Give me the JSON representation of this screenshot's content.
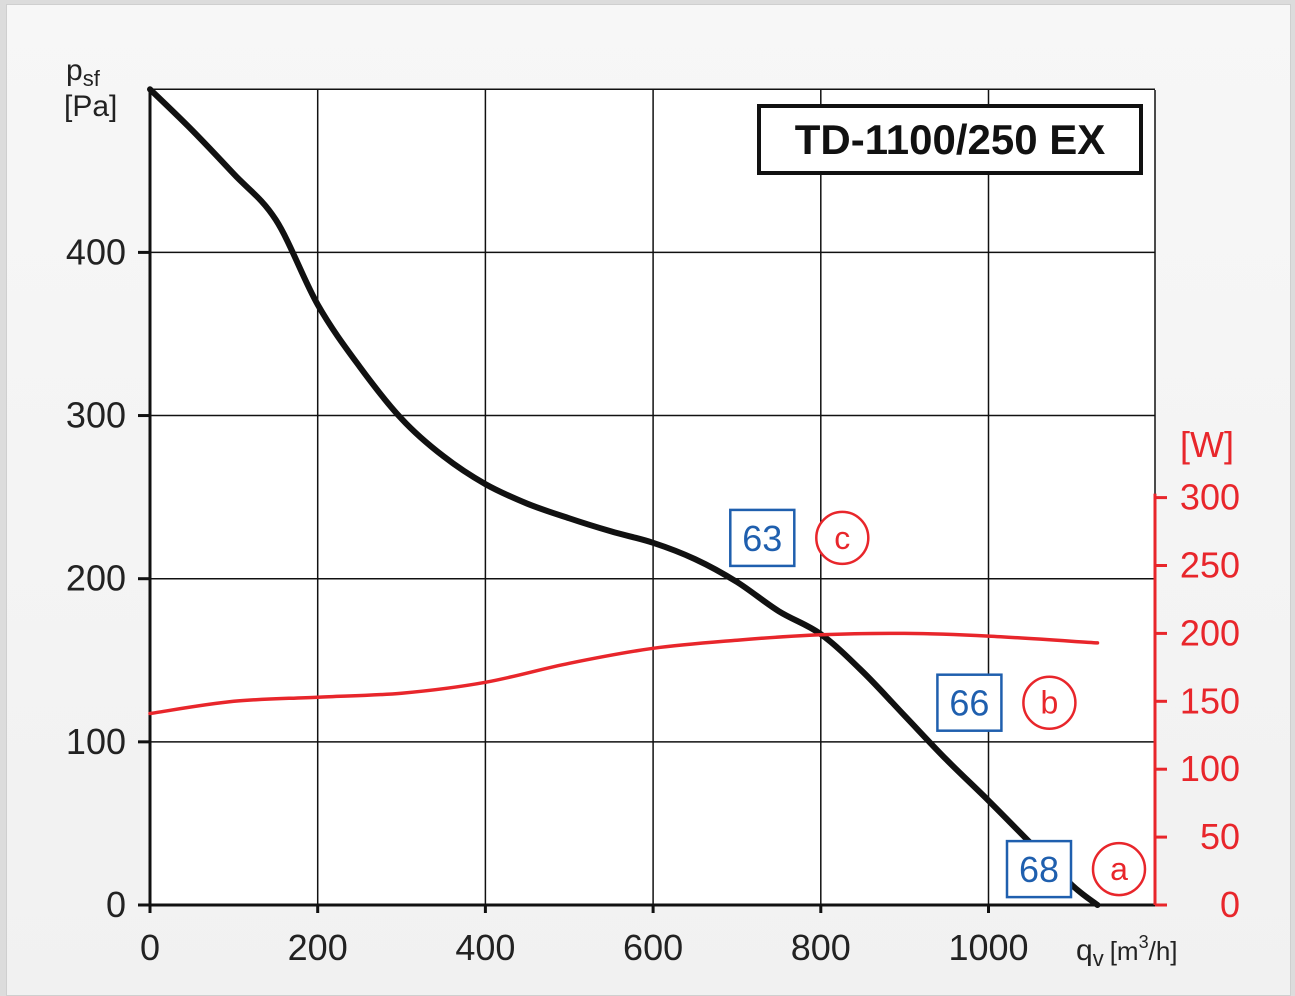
{
  "chart_data": {
    "type": "line",
    "title": "TD-1100/250 EX",
    "x_axis": {
      "label_main": "q",
      "label_sub": "v",
      "label_unit_pre": "[m",
      "label_unit_sup": "3",
      "label_unit_post": "/h]",
      "range": [
        0,
        1200
      ],
      "ticks": [
        0,
        200,
        400,
        600,
        800,
        1000
      ]
    },
    "y_axis_left": {
      "label_main": "p",
      "label_sub": "sf",
      "unit": "[Pa]",
      "range": [
        0,
        500
      ],
      "ticks": [
        0,
        100,
        200,
        300,
        400
      ]
    },
    "y_axis_right": {
      "unit": "[W]",
      "range": [
        0,
        300
      ],
      "ticks": [
        0,
        50,
        100,
        150,
        200,
        250,
        300
      ],
      "color": "#e8262b"
    },
    "series": [
      {
        "axis": "left",
        "color": "#111111",
        "points": [
          [
            0,
            500
          ],
          [
            50,
            475
          ],
          [
            100,
            448
          ],
          [
            150,
            420
          ],
          [
            200,
            368
          ],
          [
            250,
            330
          ],
          [
            300,
            298
          ],
          [
            350,
            275
          ],
          [
            400,
            258
          ],
          [
            450,
            246
          ],
          [
            500,
            237
          ],
          [
            550,
            229
          ],
          [
            600,
            222
          ],
          [
            650,
            212
          ],
          [
            700,
            198
          ],
          [
            750,
            180
          ],
          [
            800,
            166
          ],
          [
            850,
            143
          ],
          [
            900,
            116
          ],
          [
            950,
            89
          ],
          [
            1000,
            64
          ],
          [
            1050,
            38
          ],
          [
            1100,
            12
          ],
          [
            1130,
            0
          ]
        ]
      },
      {
        "axis": "right",
        "color": "#e8262b",
        "points": [
          [
            0,
            141
          ],
          [
            100,
            150
          ],
          [
            200,
            153
          ],
          [
            300,
            156
          ],
          [
            400,
            164
          ],
          [
            500,
            178
          ],
          [
            600,
            189
          ],
          [
            700,
            195
          ],
          [
            800,
            199
          ],
          [
            900,
            200
          ],
          [
            1000,
            198
          ],
          [
            1130,
            193
          ]
        ]
      }
    ],
    "annotations": [
      {
        "box": "63",
        "letter": "c",
        "x": 735,
        "y": 225
      },
      {
        "box": "66",
        "letter": "b",
        "x": 982,
        "y": 124
      },
      {
        "box": "68",
        "letter": "a",
        "x": 1065,
        "y": 22
      }
    ],
    "grid": true
  }
}
